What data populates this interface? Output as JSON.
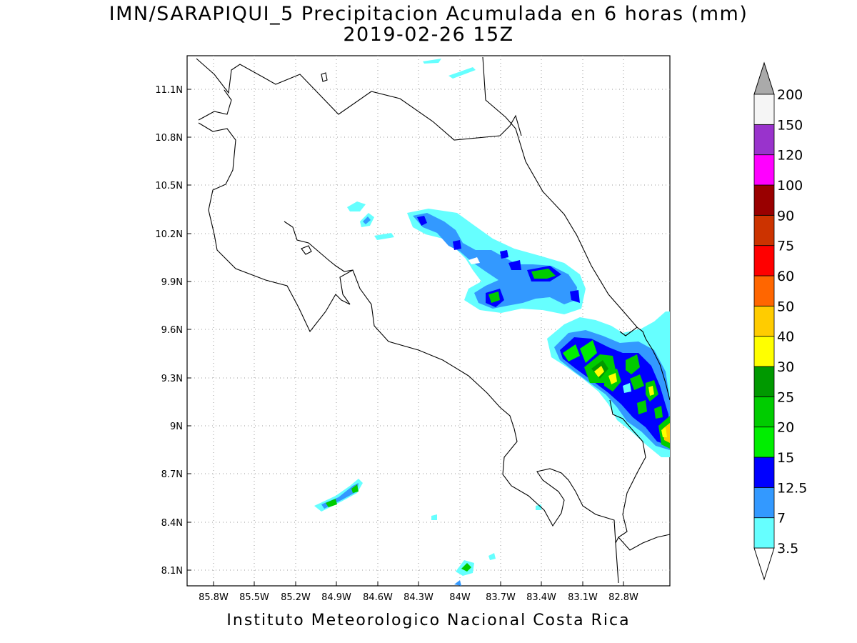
{
  "title": {
    "line1": "IMN/SARAPIQUI_5 Precipitacion Acumulada en 6 horas (mm)",
    "line2": "2019-02-26 15Z"
  },
  "footer": "Instituto Meteorologico Nacional Costa Rica",
  "map": {
    "lon_range": [
      -86.05,
      -82.45
    ],
    "lat_range": [
      8.0,
      11.25
    ],
    "x_ticks": [
      "85.8W",
      "85.5W",
      "85.2W",
      "84.9W",
      "84.6W",
      "84.3W",
      "84W",
      "83.7W",
      "83.4W",
      "83.1W",
      "82.8W"
    ],
    "y_ticks": [
      "11.1N",
      "10.8N",
      "10.5N",
      "10.2N",
      "9.9N",
      "9.6N",
      "9.3N",
      "9N",
      "8.7N",
      "8.4N",
      "8.1N"
    ],
    "grid": true
  },
  "colorbar": {
    "labels": [
      "3.5",
      "7",
      "12.5",
      "15",
      "20",
      "25",
      "30",
      "40",
      "50",
      "60",
      "75",
      "90",
      "100",
      "120",
      "150",
      "200"
    ],
    "colors": [
      "#66ffff",
      "#3399ff",
      "#0000ff",
      "#00ee00",
      "#00cc00",
      "#009900",
      "#ffff00",
      "#ffcc00",
      "#ff6600",
      "#ff0000",
      "#cc3300",
      "#990000",
      "#ff00ff",
      "#9933cc",
      "#f5f5f5",
      "#aaaaaa"
    ]
  }
}
